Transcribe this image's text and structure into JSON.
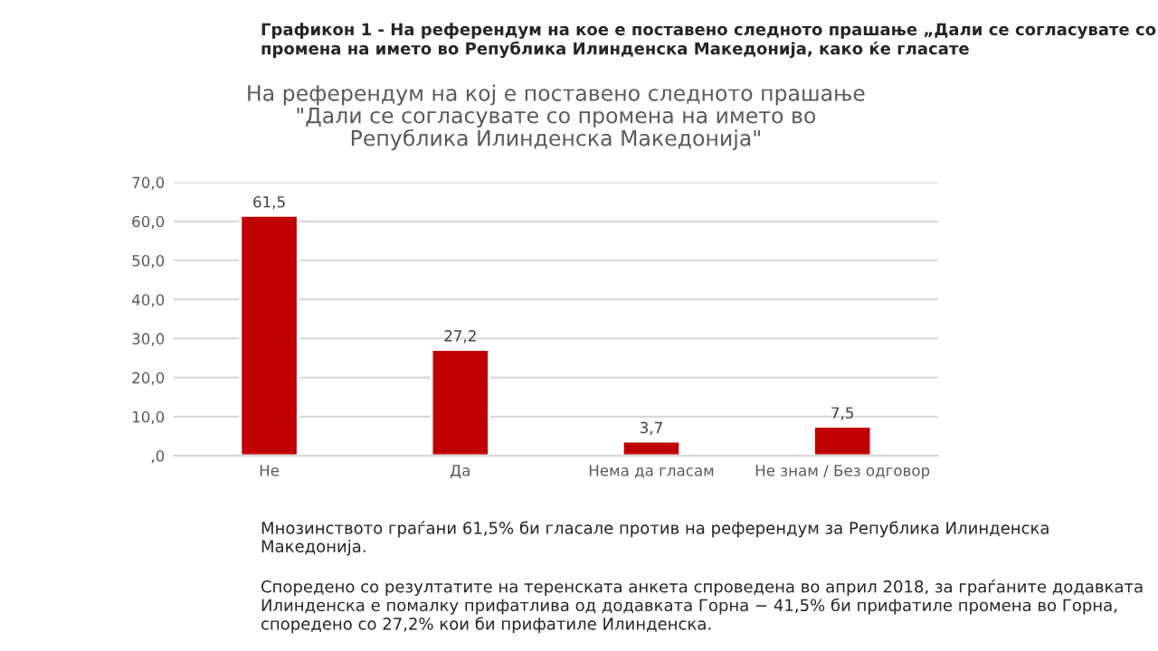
{
  "chart_data": {
    "type": "bar",
    "title": "Графикон 1 - На референдум на кое е поставено следното прашање „Дали се согласувате со промена на името во Република Илинденска Македонија, како ќе гласате",
    "subtitle": "На референдум на кој е поставено следното прашање\n\"Дали се согласувате со промена на името во\nРепублика Илинденска Македонија\"",
    "categories": [
      "Не",
      "Да",
      "Нема да гласам",
      "Не знам / Без одговор"
    ],
    "values": [
      61.5,
      27.2,
      3.7,
      7.5
    ],
    "value_labels": [
      "61,5",
      "27,2",
      "3,7",
      "7,5"
    ],
    "color": "#c00000",
    "ylim": [
      0,
      70
    ],
    "yticks": [
      {
        "value": 0,
        "label": ",0"
      },
      {
        "value": 10,
        "label": "10,0"
      },
      {
        "value": 20,
        "label": "20,0"
      },
      {
        "value": 30,
        "label": "30,0"
      },
      {
        "value": 40,
        "label": "40,0"
      },
      {
        "value": 50,
        "label": "50,0"
      },
      {
        "value": 60,
        "label": "60,0"
      },
      {
        "value": 70,
        "label": "70,0"
      }
    ],
    "grid": "y",
    "annotations": [
      "Мнозинството граѓани 61,5% би гласале против на референдум за Република Илинденска Македонија.",
      "Споредено со резултатите на теренската анкета спроведена во април 2018, за граѓаните додавката Илинденска е помалку прифатлива од додавката Горна − 41,5% би прифатиле промена во Горна, споредено со 27,2% кои би прифатиле Илинденска."
    ]
  }
}
